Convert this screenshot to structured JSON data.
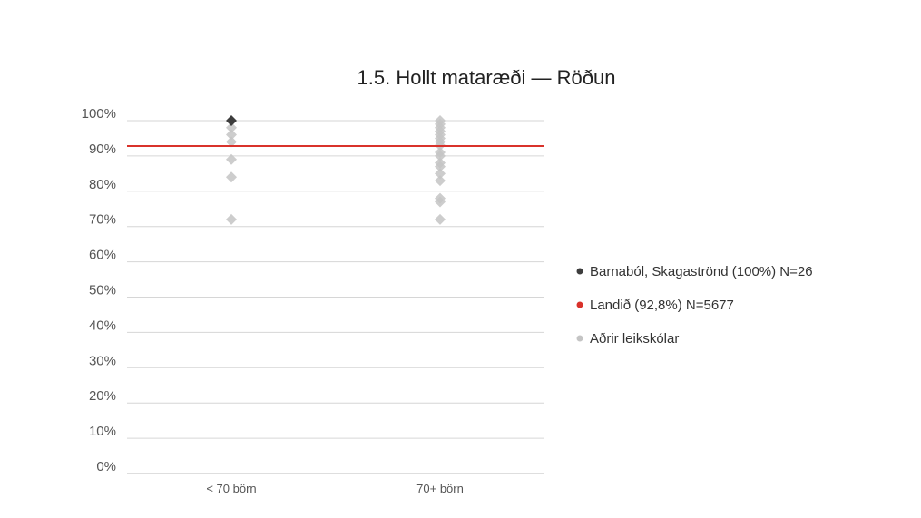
{
  "chart_data": {
    "type": "scatter",
    "title": "1.5. Hollt mataræði — Röðun",
    "xlabel": "",
    "ylabel": "",
    "categories": [
      "< 70 börn",
      "70+ börn"
    ],
    "ylim": [
      0,
      100
    ],
    "yticks": [
      0,
      10,
      20,
      30,
      40,
      50,
      60,
      70,
      80,
      90,
      100
    ],
    "ytick_labels": [
      "0%",
      "10%",
      "20%",
      "30%",
      "40%",
      "50%",
      "60%",
      "70%",
      "80%",
      "90%",
      "100%"
    ],
    "grid": true,
    "legend_position": "right",
    "reference_line": {
      "name": "Landið (92,8%) N=5677",
      "value": 92.8,
      "color": "#d9322b"
    },
    "series": [
      {
        "name": "Barnaból, Skagaströnd (100%) N=26",
        "color": "#3d3d3d",
        "points": [
          {
            "category": "< 70 börn",
            "value": 100
          }
        ]
      },
      {
        "name": "Aðrir leikskólar",
        "color": "#c4c4c4",
        "points": [
          {
            "category": "< 70 börn",
            "value": 98
          },
          {
            "category": "< 70 börn",
            "value": 96
          },
          {
            "category": "< 70 börn",
            "value": 94
          },
          {
            "category": "< 70 börn",
            "value": 89
          },
          {
            "category": "< 70 börn",
            "value": 84
          },
          {
            "category": "< 70 börn",
            "value": 72
          },
          {
            "category": "70+ börn",
            "value": 100
          },
          {
            "category": "70+ börn",
            "value": 99
          },
          {
            "category": "70+ börn",
            "value": 98
          },
          {
            "category": "70+ börn",
            "value": 97
          },
          {
            "category": "70+ börn",
            "value": 96
          },
          {
            "category": "70+ börn",
            "value": 95
          },
          {
            "category": "70+ börn",
            "value": 94
          },
          {
            "category": "70+ börn",
            "value": 93
          },
          {
            "category": "70+ börn",
            "value": 91
          },
          {
            "category": "70+ börn",
            "value": 90
          },
          {
            "category": "70+ börn",
            "value": 88
          },
          {
            "category": "70+ börn",
            "value": 87
          },
          {
            "category": "70+ börn",
            "value": 85
          },
          {
            "category": "70+ börn",
            "value": 83
          },
          {
            "category": "70+ börn",
            "value": 78
          },
          {
            "category": "70+ börn",
            "value": 77
          },
          {
            "category": "70+ börn",
            "value": 72
          }
        ]
      }
    ]
  }
}
